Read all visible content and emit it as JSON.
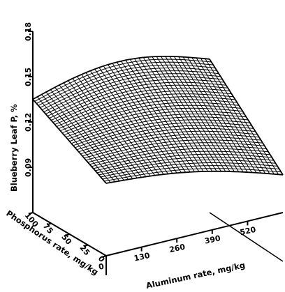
{
  "chart_data": {
    "type": "surface",
    "title": "",
    "zlabel": "Blueberry Leaf P, %",
    "xlabel": "Aluminum rate, mg/kg",
    "ylabel": "Phosphorus rate, mg/kg",
    "z_ticks": [
      "0.09",
      "0.12",
      "0.15",
      "0.18"
    ],
    "x_ticks": [
      "0",
      "130",
      "260",
      "390",
      "520"
    ],
    "y_ticks": [
      "0",
      "25",
      "50",
      "75",
      "100"
    ],
    "xlim": [
      0,
      650
    ],
    "ylim": [
      0,
      100
    ],
    "zlim": [
      0.06,
      0.18
    ],
    "grid_rows": 40,
    "grid_cols": 40,
    "surface_corners": {
      "x0_y0": 0.108,
      "x650_y0": 0.085,
      "x0_y100": 0.135,
      "x650_y100": 0.133
    },
    "color": "#000000"
  }
}
